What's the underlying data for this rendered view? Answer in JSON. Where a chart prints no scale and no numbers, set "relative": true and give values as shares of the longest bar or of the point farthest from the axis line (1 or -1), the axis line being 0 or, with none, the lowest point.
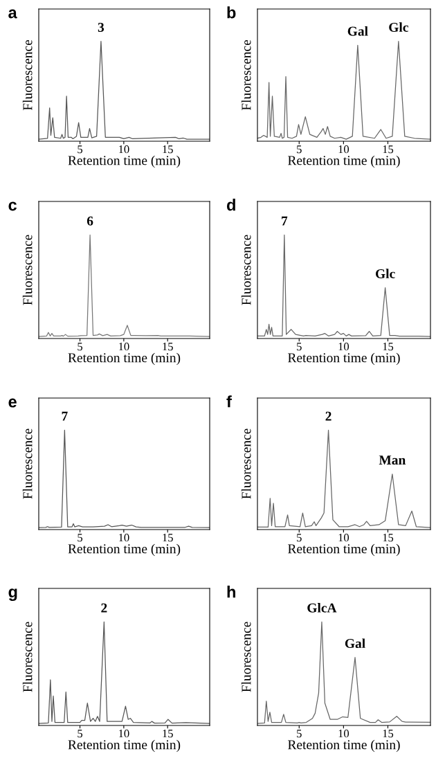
{
  "chart_data": [
    {
      "type": "line",
      "title": "a",
      "xlabel": "Retention time (min)",
      "ylabel": "Fluorescence",
      "relative": true,
      "xlim": [
        0.3,
        19.8
      ],
      "xticks": [
        5,
        10,
        15
      ],
      "series": [
        {
          "color": "#555555",
          "x": [
            0.3,
            1.3,
            1.54,
            1.68,
            1.9,
            2.1,
            2.8,
            2.95,
            3.1,
            3.3,
            3.47,
            3.65,
            4.0,
            4.2,
            4.6,
            4.85,
            5.1,
            5.9,
            6.1,
            6.35,
            6.9,
            7.4,
            7.9,
            9.5,
            10.0,
            10.6,
            11.0,
            15.9,
            16.3,
            16.8,
            17.2,
            19.8
          ],
          "values": [
            0,
            0.01,
            0.32,
            0.04,
            0.22,
            0.02,
            0.01,
            0.05,
            0.01,
            0.02,
            0.44,
            0.02,
            0.02,
            0.005,
            0.03,
            0.17,
            0.02,
            0.02,
            0.11,
            0.015,
            0.03,
            1.0,
            0.02,
            0.02,
            0.005,
            0.02,
            0.005,
            0.02,
            0.005,
            0.012,
            0,
            0
          ]
        }
      ],
      "annotations": [
        {
          "text": "3",
          "x": 7.4,
          "y": 1.0
        }
      ]
    },
    {
      "type": "line",
      "title": "b",
      "xlabel": "Retention time (min)",
      "ylabel": "Fluorescence",
      "relative": true,
      "xlim": [
        0.3,
        19.8
      ],
      "xticks": [
        5,
        10,
        15
      ],
      "series": [
        {
          "color": "#666666",
          "x": [
            0.3,
            0.7,
            1.0,
            1.4,
            1.6,
            1.75,
            1.98,
            2.2,
            2.8,
            2.96,
            3.1,
            3.3,
            3.5,
            3.7,
            4.2,
            4.7,
            4.94,
            5.2,
            5.7,
            6.2,
            7.0,
            7.5,
            7.7,
            7.95,
            8.2,
            8.5,
            9.0,
            9.7,
            10.3,
            11.0,
            11.6,
            12.2,
            13.5,
            14.2,
            14.8,
            15.5,
            16.2,
            16.9,
            18.0,
            19.8
          ],
          "values": [
            0.01,
            0.02,
            0.04,
            0.02,
            0.58,
            0.03,
            0.44,
            0.03,
            0.02,
            0.06,
            0.01,
            0.02,
            0.64,
            0.02,
            0.01,
            0.03,
            0.15,
            0.05,
            0.23,
            0.05,
            0.02,
            0.08,
            0.11,
            0.05,
            0.13,
            0.03,
            0.01,
            0.02,
            0,
            0.03,
            0.96,
            0.03,
            0.01,
            0.1,
            0.01,
            0.03,
            1.0,
            0.03,
            0.01,
            0
          ]
        }
      ],
      "annotations": [
        {
          "text": "Gal",
          "x": 11.6,
          "y": 0.96
        },
        {
          "text": "Glc",
          "x": 16.2,
          "y": 1.0
        }
      ]
    },
    {
      "type": "line",
      "title": "c",
      "xlabel": "Retention time (min)",
      "ylabel": "Fluorescence",
      "relative": true,
      "xlim": [
        0.3,
        19.8
      ],
      "xticks": [
        5,
        10,
        15
      ],
      "series": [
        {
          "color": "#777777",
          "x": [
            0.3,
            1.2,
            1.4,
            1.6,
            1.8,
            2.0,
            2.8,
            2.95,
            3.1,
            3.35,
            3.6,
            4.8,
            5.1,
            5.8,
            6.15,
            6.5,
            7.0,
            7.2,
            7.6,
            8.1,
            8.5,
            9.6,
            10.0,
            10.4,
            10.8,
            11.2,
            12.5,
            13.9,
            14.2,
            17.5,
            19.8
          ],
          "values": [
            0,
            0.005,
            0.04,
            0.005,
            0.03,
            0.005,
            0.005,
            0.01,
            0.003,
            0.02,
            0.003,
            0.005,
            0.008,
            0.01,
            1.0,
            0.01,
            0.015,
            0.025,
            0.008,
            0.02,
            0.005,
            0.008,
            0.02,
            0.11,
            0.01,
            0.01,
            0.008,
            0.01,
            0.004,
            0.004,
            0
          ]
        }
      ],
      "annotations": [
        {
          "text": "6",
          "x": 6.15,
          "y": 1.0
        }
      ]
    },
    {
      "type": "line",
      "title": "d",
      "xlabel": "Retention time (min)",
      "ylabel": "Fluorescence",
      "relative": true,
      "xlim": [
        0.3,
        19.8
      ],
      "xticks": [
        5,
        10,
        15
      ],
      "series": [
        {
          "color": "#666666",
          "x": [
            0.3,
            1.1,
            1.3,
            1.45,
            1.6,
            1.75,
            1.9,
            2.05,
            3.1,
            3.33,
            3.55,
            4.1,
            4.6,
            5.5,
            5.75,
            6.8,
            7.6,
            7.9,
            8.3,
            9.0,
            9.3,
            9.7,
            10.0,
            10.3,
            10.6,
            10.9,
            12.5,
            12.9,
            13.3,
            14.2,
            14.7,
            15.2,
            15.8,
            16.3,
            18.5,
            19.8
          ],
          "values": [
            0.005,
            0.005,
            0.07,
            0.02,
            0.12,
            0.02,
            0.09,
            0.005,
            0.005,
            1.0,
            0.02,
            0.07,
            0.02,
            0.005,
            0.01,
            0.005,
            0.02,
            0.03,
            0.005,
            0.02,
            0.05,
            0.02,
            0.03,
            0.005,
            0.02,
            0.005,
            0.008,
            0.05,
            0.005,
            0.01,
            0.48,
            0.01,
            0.01,
            0.003,
            0.003,
            0
          ]
        }
      ],
      "annotations": [
        {
          "text": "7",
          "x": 3.33,
          "y": 1.0
        },
        {
          "text": "Glc",
          "x": 14.7,
          "y": 0.48
        }
      ]
    },
    {
      "type": "line",
      "title": "e",
      "xlabel": "Retention time (min)",
      "ylabel": "Fluorescence",
      "relative": true,
      "xlim": [
        0.3,
        19.8
      ],
      "xticks": [
        5,
        10,
        15
      ],
      "series": [
        {
          "color": "#555555",
          "x": [
            0.3,
            1.1,
            1.3,
            1.5,
            2.9,
            3.25,
            3.6,
            4.1,
            4.25,
            4.4,
            4.85,
            5.3,
            6.5,
            7.8,
            8.2,
            8.6,
            9.5,
            9.8,
            10.3,
            10.9,
            11.4,
            12,
            17.0,
            17.4,
            17.8,
            19.8
          ],
          "values": [
            0,
            0.002,
            0.01,
            0.002,
            0.005,
            1.0,
            0.008,
            0.008,
            0.04,
            0.008,
            0.02,
            0.008,
            0.008,
            0.015,
            0.03,
            0.01,
            0.02,
            0.026,
            0.015,
            0.026,
            0.008,
            0.003,
            0.003,
            0.014,
            0.002,
            0
          ]
        }
      ],
      "annotations": [
        {
          "text": "7",
          "x": 3.25,
          "y": 1.0
        }
      ]
    },
    {
      "type": "line",
      "title": "f",
      "xlabel": "Retention time (min)",
      "ylabel": "Fluorescence",
      "relative": true,
      "xlim": [
        0.3,
        19.8
      ],
      "xticks": [
        5,
        10,
        15
      ],
      "series": [
        {
          "color": "#666666",
          "x": [
            0.3,
            1.5,
            1.73,
            1.9,
            2.1,
            2.3,
            3.4,
            3.7,
            3.9,
            5.1,
            5.4,
            5.7,
            6.4,
            6.7,
            6.9,
            7.5,
            7.8,
            8.3,
            8.8,
            9.5,
            10.5,
            11.3,
            11.8,
            12.3,
            12.6,
            13.0,
            14.0,
            14.7,
            15.5,
            16.2,
            17.0,
            17.7,
            18.2,
            19.8
          ],
          "values": [
            0.005,
            0.005,
            0.3,
            0.02,
            0.25,
            0.01,
            0.01,
            0.13,
            0.02,
            0.01,
            0.15,
            0.01,
            0.02,
            0.06,
            0.02,
            0.1,
            0.15,
            1.0,
            0.08,
            0.01,
            0.01,
            0.03,
            0.01,
            0.03,
            0.065,
            0.02,
            0.03,
            0.07,
            0.55,
            0.03,
            0.02,
            0.17,
            0.01,
            0
          ]
        }
      ],
      "annotations": [
        {
          "text": "2",
          "x": 8.3,
          "y": 1.0
        },
        {
          "text": "Man",
          "x": 15.5,
          "y": 0.55
        }
      ]
    },
    {
      "type": "line",
      "title": "g",
      "xlabel": "Retention time (min)",
      "ylabel": "Fluorescence",
      "relative": true,
      "xlim": [
        0.3,
        19.8
      ],
      "xticks": [
        5,
        10,
        15
      ],
      "series": [
        {
          "color": "#555555",
          "x": [
            0.3,
            1.4,
            1.63,
            1.8,
            1.96,
            2.15,
            3.2,
            3.4,
            3.6,
            5.0,
            5.2,
            5.55,
            5.85,
            6.2,
            6.5,
            6.75,
            7.0,
            7.25,
            7.75,
            8.1,
            9.8,
            10.2,
            10.5,
            10.75,
            11.1,
            13.0,
            13.2,
            13.5,
            14.7,
            15.05,
            15.5,
            17.1,
            19.8
          ],
          "values": [
            0,
            0.005,
            0.43,
            0.02,
            0.27,
            0.01,
            0.01,
            0.31,
            0.01,
            0.01,
            0.03,
            0.03,
            0.2,
            0.02,
            0.05,
            0.02,
            0.07,
            0.02,
            1.0,
            0.02,
            0.02,
            0.17,
            0.04,
            0.05,
            0.01,
            0.005,
            0.02,
            0.003,
            0.005,
            0.04,
            0.003,
            0.008,
            0
          ]
        }
      ],
      "annotations": [
        {
          "text": "2",
          "x": 7.75,
          "y": 1.0
        }
      ]
    },
    {
      "type": "line",
      "title": "h",
      "xlabel": "Retention time (min)",
      "ylabel": "Fluorescence",
      "relative": true,
      "xlim": [
        0.3,
        19.8
      ],
      "xticks": [
        5,
        10,
        15
      ],
      "series": [
        {
          "color": "#666666",
          "x": [
            0.3,
            1.1,
            1.3,
            1.5,
            1.7,
            1.9,
            3.0,
            3.25,
            3.5,
            4.8,
            5.0,
            5.2,
            5.8,
            6.5,
            6.8,
            7.2,
            7.55,
            7.9,
            8.5,
            9.3,
            9.9,
            10.5,
            11.3,
            11.9,
            13.0,
            13.6,
            13.9,
            14.3,
            15.2,
            16.0,
            16.6,
            17.0,
            17.4,
            19.8
          ],
          "values": [
            0,
            0.005,
            0.22,
            0.02,
            0.11,
            0.01,
            0.01,
            0.09,
            0.01,
            0.005,
            0.01,
            0.005,
            0.01,
            0.05,
            0.1,
            0.3,
            1.0,
            0.2,
            0.04,
            0.04,
            0.065,
            0.06,
            0.65,
            0.05,
            0.01,
            0.01,
            0.036,
            0.01,
            0.015,
            0.07,
            0.02,
            0.013,
            0.013,
            0.012
          ]
        }
      ],
      "annotations": [
        {
          "text": "GlcA",
          "x": 7.55,
          "y": 1.0
        },
        {
          "text": "Gal",
          "x": 11.3,
          "y": 0.65
        }
      ]
    }
  ]
}
